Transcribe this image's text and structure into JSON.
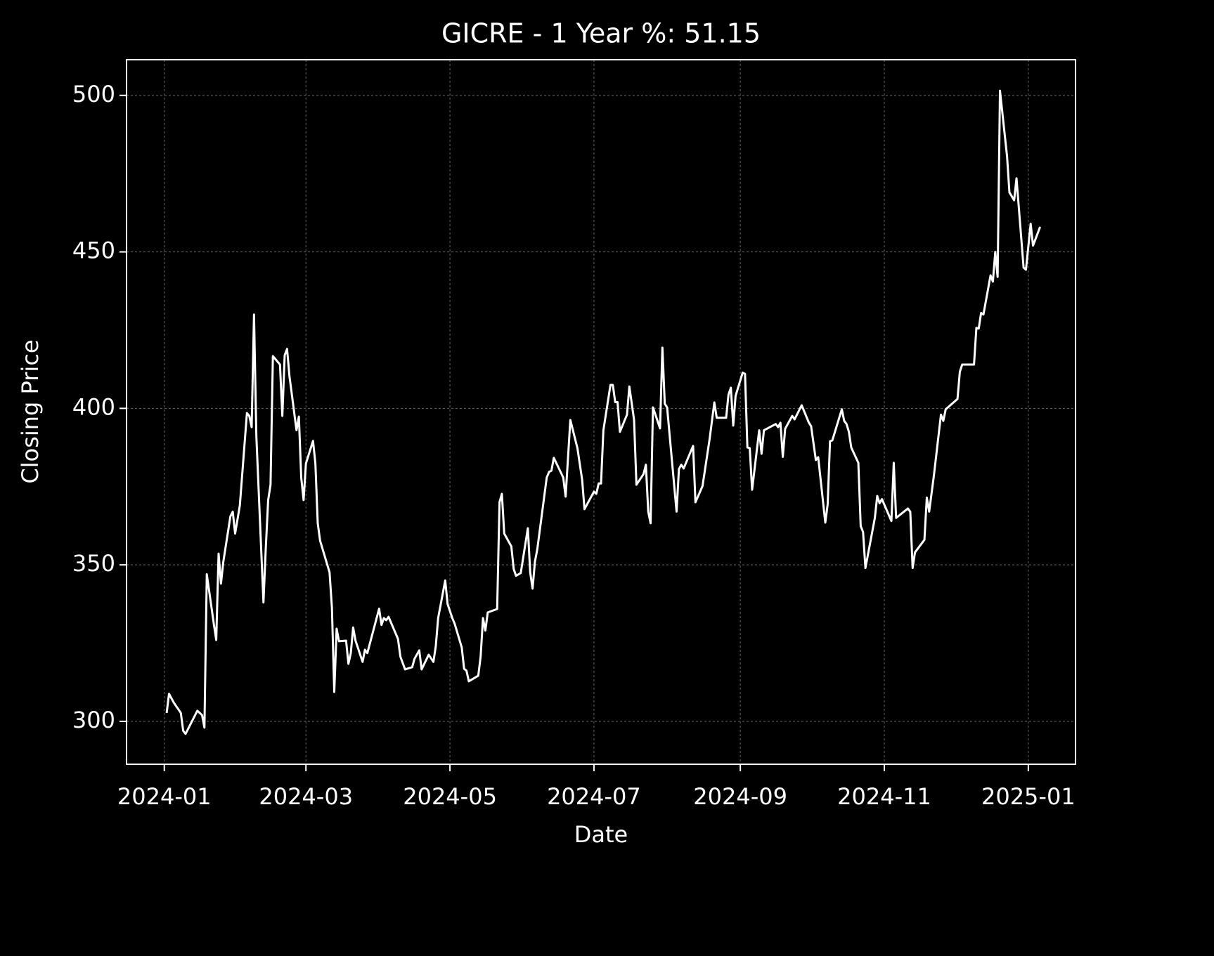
{
  "chart_data": {
    "type": "line",
    "title": "GICRE - 1 Year %: 51.15",
    "xlabel": "Date",
    "ylabel": "Closing Price",
    "color": "#ffffff",
    "background": "#000000",
    "grid": true,
    "xlim": [
      "2023-12-16",
      "2025-01-21"
    ],
    "xticks": [
      {
        "value": "2024-01-01",
        "label": "2024-01"
      },
      {
        "value": "2024-03-01",
        "label": "2024-03"
      },
      {
        "value": "2024-05-01",
        "label": "2024-05"
      },
      {
        "value": "2024-07-01",
        "label": "2024-07"
      },
      {
        "value": "2024-09-01",
        "label": "2024-09"
      },
      {
        "value": "2024-11-01",
        "label": "2024-11"
      },
      {
        "value": "2025-01-01",
        "label": "2025-01"
      }
    ],
    "ylim": [
      286.3,
      511.4
    ],
    "yticks": [
      300,
      350,
      400,
      450,
      500
    ],
    "x": [
      "2024-01-02",
      "2024-01-03",
      "2024-01-05",
      "2024-01-08",
      "2024-01-09",
      "2024-01-10",
      "2024-01-15",
      "2024-01-17",
      "2024-01-18",
      "2024-01-19",
      "2024-01-22",
      "2024-01-23",
      "2024-01-24",
      "2024-01-25",
      "2024-01-26",
      "2024-01-29",
      "2024-01-30",
      "2024-01-31",
      "2024-02-02",
      "2024-02-05",
      "2024-02-06",
      "2024-02-07",
      "2024-02-08",
      "2024-02-09",
      "2024-02-12",
      "2024-02-13",
      "2024-02-14",
      "2024-02-15",
      "2024-02-16",
      "2024-02-19",
      "2024-02-20",
      "2024-02-21",
      "2024-02-22",
      "2024-02-23",
      "2024-02-26",
      "2024-02-27",
      "2024-02-28",
      "2024-02-29",
      "2024-03-01",
      "2024-03-04",
      "2024-03-05",
      "2024-03-06",
      "2024-03-07",
      "2024-03-11",
      "2024-03-12",
      "2024-03-13",
      "2024-03-14",
      "2024-03-15",
      "2024-03-18",
      "2024-03-19",
      "2024-03-20",
      "2024-03-21",
      "2024-03-22",
      "2024-03-25",
      "2024-03-26",
      "2024-03-27",
      "2024-04-01",
      "2024-04-02",
      "2024-04-03",
      "2024-04-04",
      "2024-04-05",
      "2024-04-09",
      "2024-04-10",
      "2024-04-12",
      "2024-04-15",
      "2024-04-16",
      "2024-04-18",
      "2024-04-19",
      "2024-04-22",
      "2024-04-24",
      "2024-04-25",
      "2024-04-26",
      "2024-04-29",
      "2024-04-30",
      "2024-05-02",
      "2024-05-03",
      "2024-05-06",
      "2024-05-07",
      "2024-05-08",
      "2024-05-09",
      "2024-05-13",
      "2024-05-14",
      "2024-05-15",
      "2024-05-16",
      "2024-05-17",
      "2024-05-21",
      "2024-05-22",
      "2024-05-23",
      "2024-05-24",
      "2024-05-27",
      "2024-05-28",
      "2024-05-29",
      "2024-05-31",
      "2024-06-03",
      "2024-06-04",
      "2024-06-05",
      "2024-06-06",
      "2024-06-07",
      "2024-06-11",
      "2024-06-12",
      "2024-06-13",
      "2024-06-14",
      "2024-06-18",
      "2024-06-19",
      "2024-06-21",
      "2024-06-24",
      "2024-06-26",
      "2024-06-27",
      "2024-07-01",
      "2024-07-02",
      "2024-07-03",
      "2024-07-04",
      "2024-07-05",
      "2024-07-08",
      "2024-07-09",
      "2024-07-10",
      "2024-07-11",
      "2024-07-12",
      "2024-07-15",
      "2024-07-16",
      "2024-07-18",
      "2024-07-19",
      "2024-07-22",
      "2024-07-23",
      "2024-07-24",
      "2024-07-25",
      "2024-07-26",
      "2024-07-29",
      "2024-07-30",
      "2024-07-31",
      "2024-08-01",
      "2024-08-05",
      "2024-08-06",
      "2024-08-07",
      "2024-08-08",
      "2024-08-12",
      "2024-08-13",
      "2024-08-16",
      "2024-08-19",
      "2024-08-21",
      "2024-08-22",
      "2024-08-26",
      "2024-08-27",
      "2024-08-28",
      "2024-08-29",
      "2024-08-30",
      "2024-09-02",
      "2024-09-03",
      "2024-09-04",
      "2024-09-05",
      "2024-09-06",
      "2024-09-09",
      "2024-09-10",
      "2024-09-11",
      "2024-09-16",
      "2024-09-17",
      "2024-09-18",
      "2024-09-19",
      "2024-09-20",
      "2024-09-23",
      "2024-09-24",
      "2024-09-27",
      "2024-09-30",
      "2024-10-01",
      "2024-10-03",
      "2024-10-04",
      "2024-10-07",
      "2024-10-08",
      "2024-10-09",
      "2024-10-10",
      "2024-10-14",
      "2024-10-15",
      "2024-10-16",
      "2024-10-17",
      "2024-10-18",
      "2024-10-21",
      "2024-10-22",
      "2024-10-23",
      "2024-10-24",
      "2024-10-28",
      "2024-10-29",
      "2024-10-30",
      "2024-10-31",
      "2024-11-04",
      "2024-11-05",
      "2024-11-06",
      "2024-11-11",
      "2024-11-12",
      "2024-11-13",
      "2024-11-14",
      "2024-11-18",
      "2024-11-19",
      "2024-11-20",
      "2024-11-22",
      "2024-11-25",
      "2024-11-26",
      "2024-11-27",
      "2024-12-02",
      "2024-12-03",
      "2024-12-04",
      "2024-12-09",
      "2024-12-10",
      "2024-12-11",
      "2024-12-12",
      "2024-12-13",
      "2024-12-16",
      "2024-12-17",
      "2024-12-18",
      "2024-12-19",
      "2024-12-20",
      "2024-12-23",
      "2024-12-24",
      "2024-12-26",
      "2024-12-27",
      "2024-12-30",
      "2024-12-31",
      "2025-01-02",
      "2025-01-03",
      "2025-01-06"
    ],
    "values": [
      302.7,
      308.8,
      306,
      302.7,
      297,
      296,
      303.4,
      302,
      298,
      347,
      331,
      326,
      353.6,
      344,
      351,
      365.5,
      367,
      360,
      369,
      398.5,
      397.6,
      394,
      430,
      391,
      338,
      355.5,
      370.7,
      375.6,
      416.7,
      414,
      397.6,
      417,
      419,
      410.4,
      393,
      397.4,
      377.9,
      370.7,
      382.4,
      389.6,
      382.4,
      363.3,
      357.7,
      347.6,
      336.4,
      309.4,
      329.6,
      325.6,
      325.8,
      318.4,
      321.8,
      330,
      325.8,
      319,
      322.9,
      321.8,
      336,
      330.8,
      333,
      332.3,
      333.4,
      326.3,
      320.7,
      316.6,
      317.3,
      320,
      322.7,
      316.6,
      321.3,
      319,
      324,
      333,
      345,
      337.5,
      333,
      331.2,
      323.6,
      316.8,
      316.2,
      312.8,
      314.6,
      320.7,
      333,
      329,
      334.8,
      335.9,
      370,
      372.7,
      360,
      355.9,
      348.7,
      346.5,
      347.4,
      361.7,
      347.6,
      342.4,
      351,
      355,
      377.9,
      379.7,
      380.1,
      384.2,
      377.9,
      371.8,
      396.3,
      387.3,
      377.2,
      367.8,
      373.4,
      372.7,
      376,
      376,
      393,
      407.5,
      407.5,
      402,
      402,
      392.5,
      398,
      407,
      396.3,
      375.6,
      379,
      382,
      367,
      363.3,
      400.3,
      393.6,
      419.4,
      401.5,
      400.3,
      367,
      380.6,
      382,
      380.8,
      388,
      370,
      375.2,
      390.2,
      401.9,
      397,
      397,
      404.4,
      406.6,
      394.5,
      404,
      411.4,
      411,
      387.5,
      387.3,
      374,
      393,
      385.5,
      393,
      395,
      394,
      395.4,
      384.5,
      393.5,
      397.6,
      396.5,
      401,
      395.5,
      394.3,
      383.5,
      384.4,
      363.5,
      369.3,
      389.5,
      389.8,
      399.7,
      396,
      395,
      392.5,
      387.5,
      382.6,
      362.4,
      360.5,
      349,
      365,
      372,
      369.7,
      371,
      364,
      382.6,
      365,
      368,
      367,
      349,
      354,
      358,
      371.5,
      367,
      378.5,
      398,
      396,
      399.7,
      403,
      411.7,
      414,
      414,
      425.7,
      425.5,
      430.5,
      430,
      442.5,
      440.5,
      450,
      442,
      501.5,
      480.5,
      469,
      466.5,
      473.5,
      445,
      444.3,
      459,
      452,
      458
    ]
  }
}
